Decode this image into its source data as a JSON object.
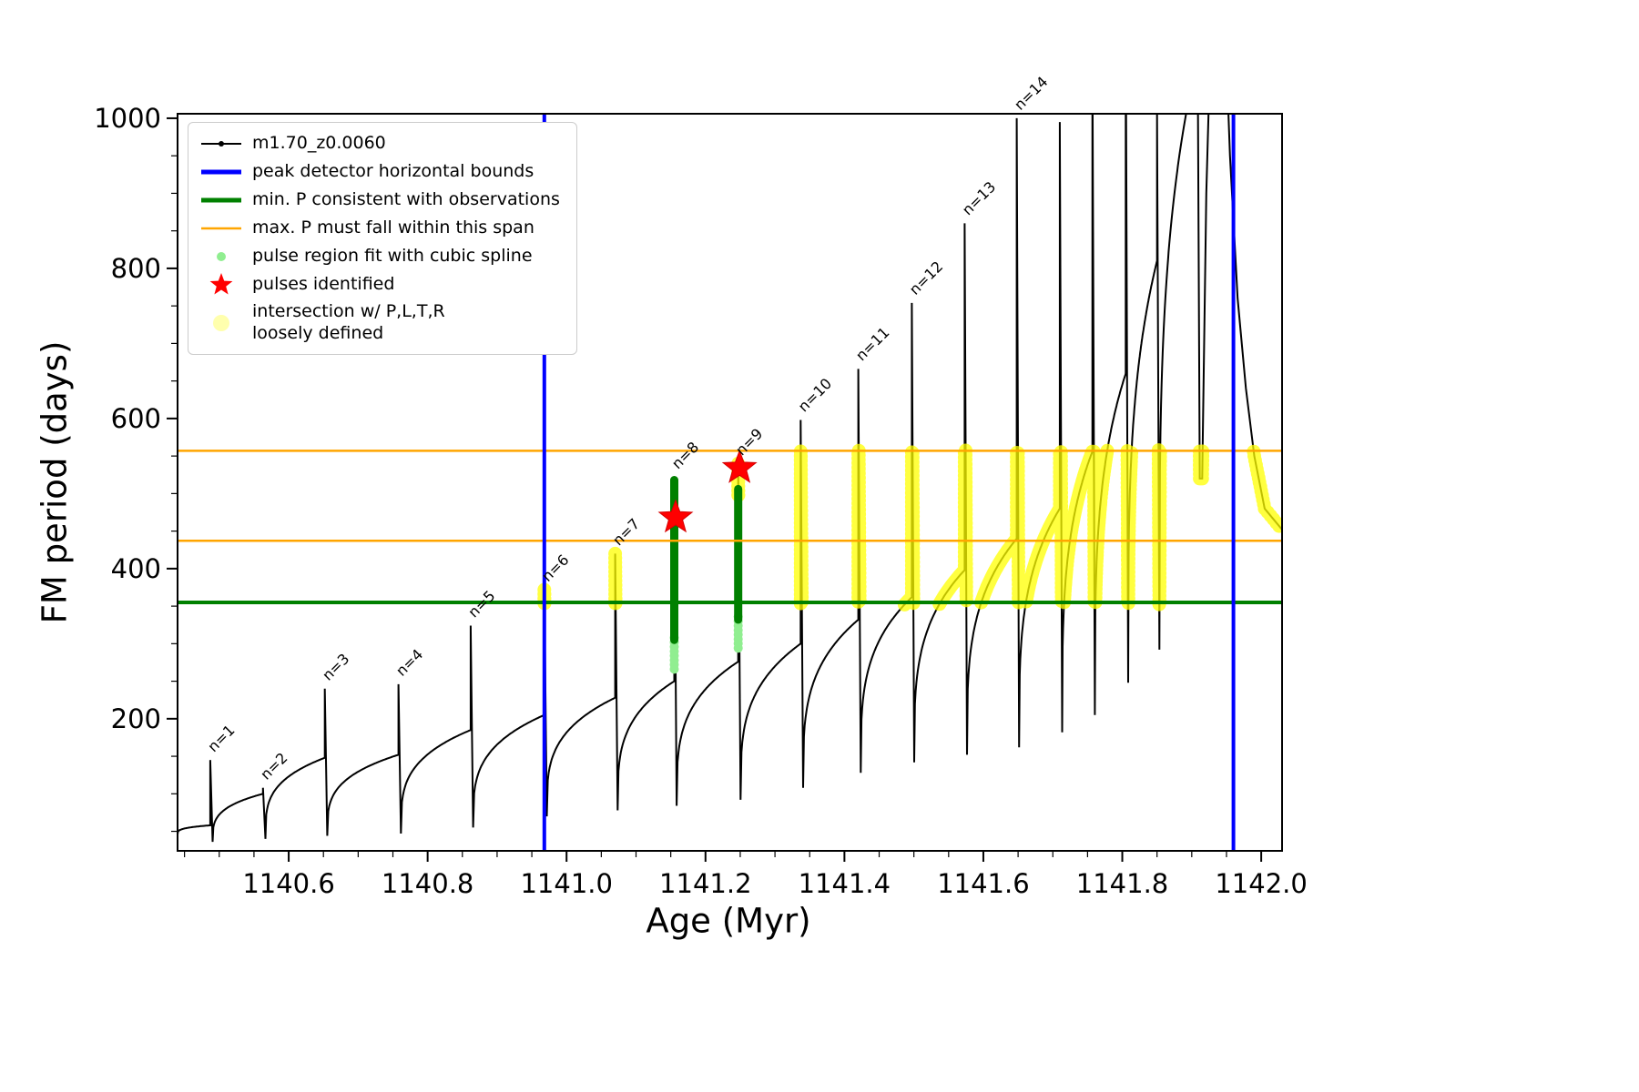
{
  "chart_data": {
    "type": "line",
    "title": "",
    "xlabel": "Age (Myr)",
    "ylabel": "FM period (days)",
    "xlim": [
      1140.44,
      1142.03
    ],
    "ylim": [
      24,
      1006
    ],
    "xticks": [
      "1140.6",
      "1140.8",
      "1141.0",
      "1141.2",
      "1141.4",
      "1141.6",
      "1141.8",
      "1142.0"
    ],
    "yticks": [
      "200",
      "400",
      "600",
      "800",
      "1000"
    ],
    "x_minor_step": 0.05,
    "y_minor_step": 50,
    "grid": false,
    "legend_position": "upper-left",
    "series_name": "m1.70_z0.0060",
    "peak_bounds": {
      "color": "#0000ff",
      "x": [
        1140.968,
        1141.96
      ]
    },
    "min_p_line": {
      "color": "#008000",
      "y": 355
    },
    "max_p_span": {
      "color": "#ffa500",
      "y": [
        437,
        557
      ]
    },
    "curve_start_value": 46,
    "pulses": [
      {
        "label": "n=1",
        "age": 1140.487,
        "shoulder": 58,
        "peak": 145,
        "post_min": 36
      },
      {
        "label": "n=2",
        "age": 1140.563,
        "shoulder": 100,
        "peak": 108,
        "post_min": 40
      },
      {
        "label": "n=3",
        "age": 1140.652,
        "shoulder": 148,
        "peak": 240,
        "post_min": 44
      },
      {
        "label": "n=4",
        "age": 1140.758,
        "shoulder": 152,
        "peak": 246,
        "post_min": 47
      },
      {
        "label": "n=5",
        "age": 1140.862,
        "shoulder": 185,
        "peak": 324,
        "post_min": 55
      },
      {
        "label": "n=6",
        "age": 1140.968,
        "shoulder": 205,
        "peak": 372,
        "post_min": 70
      },
      {
        "label": "n=7",
        "age": 1141.07,
        "shoulder": 228,
        "peak": 420,
        "post_min": 78
      },
      {
        "label": "n=8",
        "age": 1141.155,
        "shoulder": 250,
        "peak": 522,
        "post_min": 84
      },
      {
        "label": "n=9",
        "age": 1141.247,
        "shoulder": 276,
        "peak": 540,
        "post_min": 92
      },
      {
        "label": "n=10",
        "age": 1141.337,
        "shoulder": 300,
        "peak": 598,
        "post_min": 108
      },
      {
        "label": "n=11",
        "age": 1141.42,
        "shoulder": 332,
        "peak": 666,
        "post_min": 128
      },
      {
        "label": "n=12",
        "age": 1141.497,
        "shoulder": 362,
        "peak": 754,
        "post_min": 142
      },
      {
        "label": "n=13",
        "age": 1141.573,
        "shoulder": 398,
        "peak": 860,
        "post_min": 152
      },
      {
        "label": "n=14",
        "age": 1141.648,
        "shoulder": 440,
        "peak": 1000,
        "post_min": 162
      },
      {
        "label": "",
        "age": 1141.71,
        "shoulder": 480,
        "peak": 995,
        "post_min": 182
      },
      {
        "label": "",
        "age": 1141.757,
        "shoulder": 556,
        "peak": 1100,
        "post_min": 205
      },
      {
        "label": "",
        "age": 1141.805,
        "shoulder": 660,
        "peak": 1150,
        "post_min": 248
      },
      {
        "label": "",
        "age": 1141.85,
        "shoulder": 810,
        "peak": 1005,
        "post_min": 292
      },
      {
        "label": "",
        "age": 1141.908,
        "shoulder": 1080,
        "peak": 1200,
        "post_min": 520
      }
    ],
    "curve_tail": [
      [
        1141.915,
        520
      ],
      [
        1141.921,
        900
      ],
      [
        1141.93,
        1200
      ],
      [
        1141.945,
        1200
      ],
      [
        1141.955,
        950
      ],
      [
        1141.966,
        760
      ],
      [
        1141.978,
        640
      ],
      [
        1141.99,
        550
      ],
      [
        1142.005,
        480
      ],
      [
        1142.03,
        452
      ]
    ],
    "spline_fit_points": [
      {
        "age": 1141.155,
        "from": 266,
        "to": 312
      },
      {
        "age": 1141.247,
        "from": 294,
        "to": 338
      }
    ],
    "pulse_fit_columns": [
      {
        "age": 1141.155,
        "from": 305,
        "to": 518,
        "yellow_above": null
      },
      {
        "age": 1141.247,
        "from": 332,
        "to": 506,
        "yellow_above": 495
      }
    ],
    "stars": [
      {
        "x": 1141.157,
        "y": 468
      },
      {
        "x": 1141.249,
        "y": 534
      }
    ],
    "intersection_band": {
      "ymin": 352,
      "ymax": 558,
      "age_min": 1140.962
    },
    "colors": {
      "curve": "#000000",
      "blue": "#0000ff",
      "green": "#008000",
      "orange": "#ffa500",
      "lightgreen": "#90ee90",
      "yellow": "#ffff00",
      "red": "#ff0000",
      "axis": "#000000"
    },
    "legend": [
      {
        "symbol": "line-dot",
        "color": "#000000",
        "label": "m1.70_z0.0060"
      },
      {
        "symbol": "thick-line",
        "color": "#0000ff",
        "label": "peak detector horizontal bounds"
      },
      {
        "symbol": "thick-line",
        "color": "#008000",
        "label": "min. P consistent with observations"
      },
      {
        "symbol": "line",
        "color": "#ffa500",
        "label": "max. P must fall within this span"
      },
      {
        "symbol": "dot",
        "color": "#90ee90",
        "label": "pulse region fit with cubic spline"
      },
      {
        "symbol": "star",
        "color": "#ff0000",
        "label": "pulses identified"
      },
      {
        "symbol": "big-dot",
        "color": "#ffff99",
        "label": "intersection w/ P,L,T,R\nloosely defined"
      }
    ]
  }
}
